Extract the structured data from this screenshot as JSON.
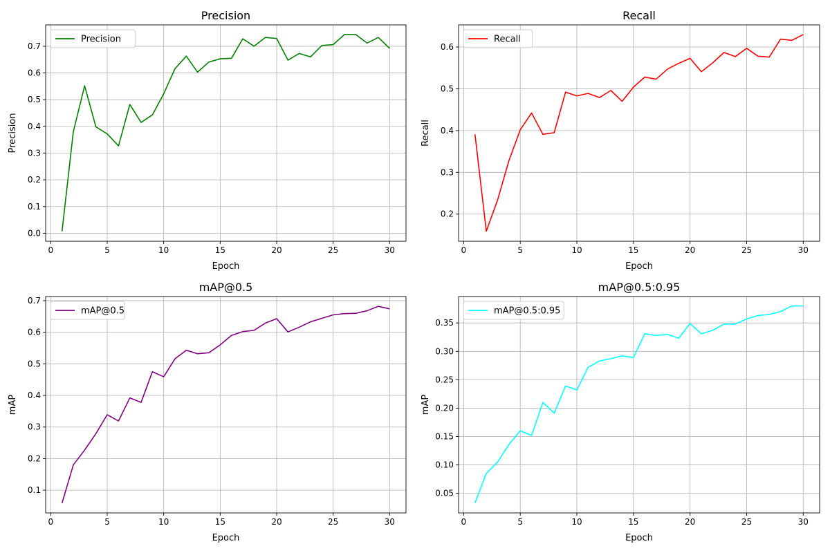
{
  "chart_data": [
    {
      "type": "line",
      "title": "Precision",
      "xlabel": "Epoch",
      "ylabel": "Precision",
      "xlim": [
        -0.45,
        31.45
      ],
      "ylim": [
        -0.03,
        0.78
      ],
      "xticks": [
        0,
        5,
        10,
        15,
        20,
        25,
        30
      ],
      "yticks": [
        0.0,
        0.1,
        0.2,
        0.3,
        0.4,
        0.5,
        0.6,
        0.7
      ],
      "ytick_labels": [
        "0.0",
        "0.1",
        "0.2",
        "0.3",
        "0.4",
        "0.5",
        "0.6",
        "0.7"
      ],
      "grid": true,
      "legend_position": "upper-left",
      "series": [
        {
          "name": "Precision",
          "color": "#008000",
          "x": [
            1,
            2,
            3,
            4,
            5,
            6,
            7,
            8,
            9,
            10,
            11,
            12,
            13,
            14,
            15,
            16,
            17,
            18,
            19,
            20,
            21,
            22,
            23,
            24,
            25,
            26,
            27,
            28,
            29,
            30
          ],
          "values": [
            0.007,
            0.38,
            0.552,
            0.398,
            0.372,
            0.327,
            0.482,
            0.415,
            0.443,
            0.522,
            0.616,
            0.663,
            0.603,
            0.641,
            0.653,
            0.655,
            0.728,
            0.7,
            0.733,
            0.729,
            0.648,
            0.673,
            0.66,
            0.703,
            0.706,
            0.744,
            0.744,
            0.712,
            0.733,
            0.692
          ]
        }
      ]
    },
    {
      "type": "line",
      "title": "Recall",
      "xlabel": "Epoch",
      "ylabel": "Recall",
      "xlim": [
        -0.45,
        31.45
      ],
      "ylim": [
        0.135,
        0.653
      ],
      "xticks": [
        0,
        5,
        10,
        15,
        20,
        25,
        30
      ],
      "yticks": [
        0.2,
        0.3,
        0.4,
        0.5,
        0.6
      ],
      "ytick_labels": [
        "0.2",
        "0.3",
        "0.4",
        "0.5",
        "0.6"
      ],
      "grid": true,
      "legend_position": "upper-left",
      "series": [
        {
          "name": "Recall",
          "color": "#ff0000",
          "x": [
            1,
            2,
            3,
            4,
            5,
            6,
            7,
            8,
            9,
            10,
            11,
            12,
            13,
            14,
            15,
            16,
            17,
            18,
            19,
            20,
            21,
            22,
            23,
            24,
            25,
            26,
            27,
            28,
            29,
            30
          ],
          "values": [
            0.391,
            0.159,
            0.234,
            0.328,
            0.402,
            0.442,
            0.391,
            0.395,
            0.492,
            0.483,
            0.489,
            0.479,
            0.496,
            0.47,
            0.504,
            0.528,
            0.523,
            0.547,
            0.561,
            0.573,
            0.541,
            0.562,
            0.587,
            0.577,
            0.597,
            0.578,
            0.576,
            0.619,
            0.616,
            0.63
          ]
        }
      ]
    },
    {
      "type": "line",
      "title": "mAP@0.5",
      "xlabel": "Epoch",
      "ylabel": "mAP",
      "xlim": [
        -0.45,
        31.45
      ],
      "ylim": [
        0.028,
        0.713
      ],
      "xticks": [
        0,
        5,
        10,
        15,
        20,
        25,
        30
      ],
      "yticks": [
        0.1,
        0.2,
        0.3,
        0.4,
        0.5,
        0.6,
        0.7
      ],
      "ytick_labels": [
        "0.1",
        "0.2",
        "0.3",
        "0.4",
        "0.5",
        "0.6",
        "0.7"
      ],
      "grid": true,
      "legend_position": "upper-left",
      "series": [
        {
          "name": "mAP@0.5",
          "color": "#800080",
          "x": [
            1,
            2,
            3,
            4,
            5,
            6,
            7,
            8,
            9,
            10,
            11,
            12,
            13,
            14,
            15,
            16,
            17,
            18,
            19,
            20,
            21,
            22,
            23,
            24,
            25,
            26,
            27,
            28,
            29,
            30
          ],
          "values": [
            0.059,
            0.18,
            0.227,
            0.279,
            0.339,
            0.319,
            0.392,
            0.378,
            0.475,
            0.459,
            0.516,
            0.543,
            0.532,
            0.535,
            0.56,
            0.59,
            0.602,
            0.606,
            0.629,
            0.643,
            0.601,
            0.616,
            0.633,
            0.644,
            0.655,
            0.659,
            0.66,
            0.668,
            0.682,
            0.674
          ]
        }
      ]
    },
    {
      "type": "line",
      "title": "mAP@0.5:0.95",
      "xlabel": "Epoch",
      "ylabel": "mAP",
      "xlim": [
        -0.45,
        31.45
      ],
      "ylim": [
        0.0155,
        0.3965
      ],
      "xticks": [
        0,
        5,
        10,
        15,
        20,
        25,
        30
      ],
      "yticks": [
        0.05,
        0.1,
        0.15,
        0.2,
        0.25,
        0.3,
        0.35
      ],
      "ytick_labels": [
        "0.05",
        "0.10",
        "0.15",
        "0.20",
        "0.25",
        "0.30",
        "0.35"
      ],
      "grid": true,
      "legend_position": "upper-left",
      "series": [
        {
          "name": "mAP@0.5:0.95",
          "color": "#00ffff",
          "x": [
            1,
            2,
            3,
            4,
            5,
            6,
            7,
            8,
            9,
            10,
            11,
            12,
            13,
            14,
            15,
            16,
            17,
            18,
            19,
            20,
            21,
            22,
            23,
            24,
            25,
            26,
            27,
            28,
            29,
            30
          ],
          "values": [
            0.033,
            0.085,
            0.105,
            0.136,
            0.16,
            0.152,
            0.21,
            0.191,
            0.239,
            0.232,
            0.272,
            0.283,
            0.287,
            0.292,
            0.289,
            0.331,
            0.328,
            0.33,
            0.323,
            0.349,
            0.331,
            0.337,
            0.348,
            0.348,
            0.357,
            0.363,
            0.365,
            0.37,
            0.38,
            0.38
          ]
        }
      ]
    }
  ]
}
